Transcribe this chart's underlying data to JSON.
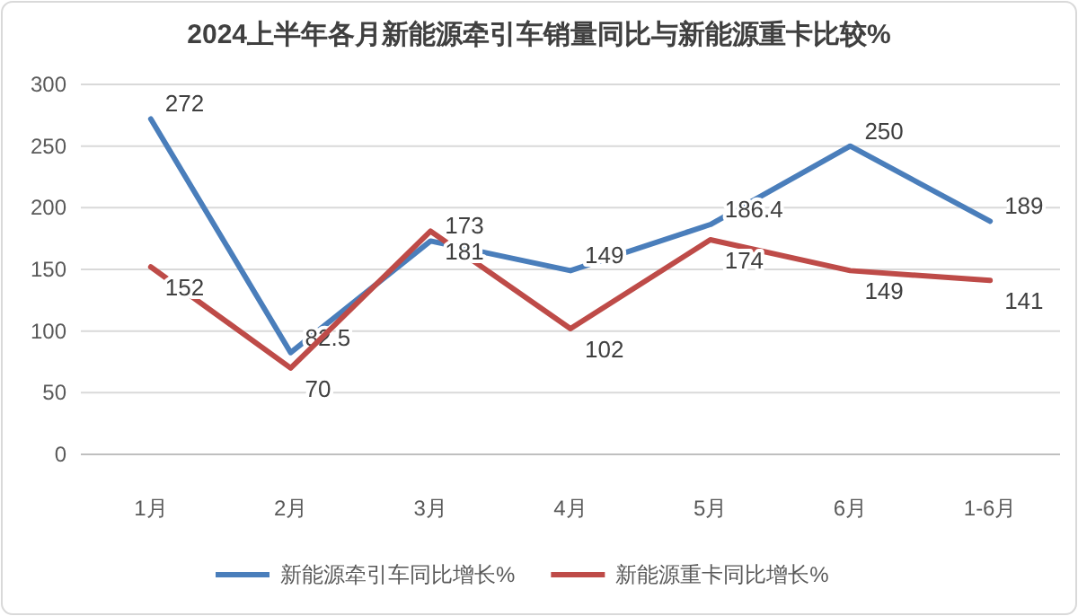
{
  "chart_data": {
    "type": "line",
    "title": "2024上半年各月新能源牵引车销量同比与新能源重卡比较%",
    "categories": [
      "1月",
      "2月",
      "3月",
      "4月",
      "5月",
      "6月",
      "1-6月"
    ],
    "series": [
      {
        "name": "新能源牵引车同比增长%",
        "color": "#4a7ebb",
        "values": [
          272,
          82.5,
          173,
          149,
          186.4,
          250,
          189
        ]
      },
      {
        "name": "新能源重卡同比增长%",
        "color": "#be4b48",
        "values": [
          152,
          70,
          181,
          102,
          174,
          149,
          141
        ]
      }
    ],
    "ylim": [
      0,
      300
    ],
    "yticks": [
      0,
      50,
      100,
      150,
      200,
      250,
      300
    ],
    "grid": "y",
    "legend": "bottom",
    "data_labels": true,
    "marker": "none",
    "line_style": "solid"
  }
}
